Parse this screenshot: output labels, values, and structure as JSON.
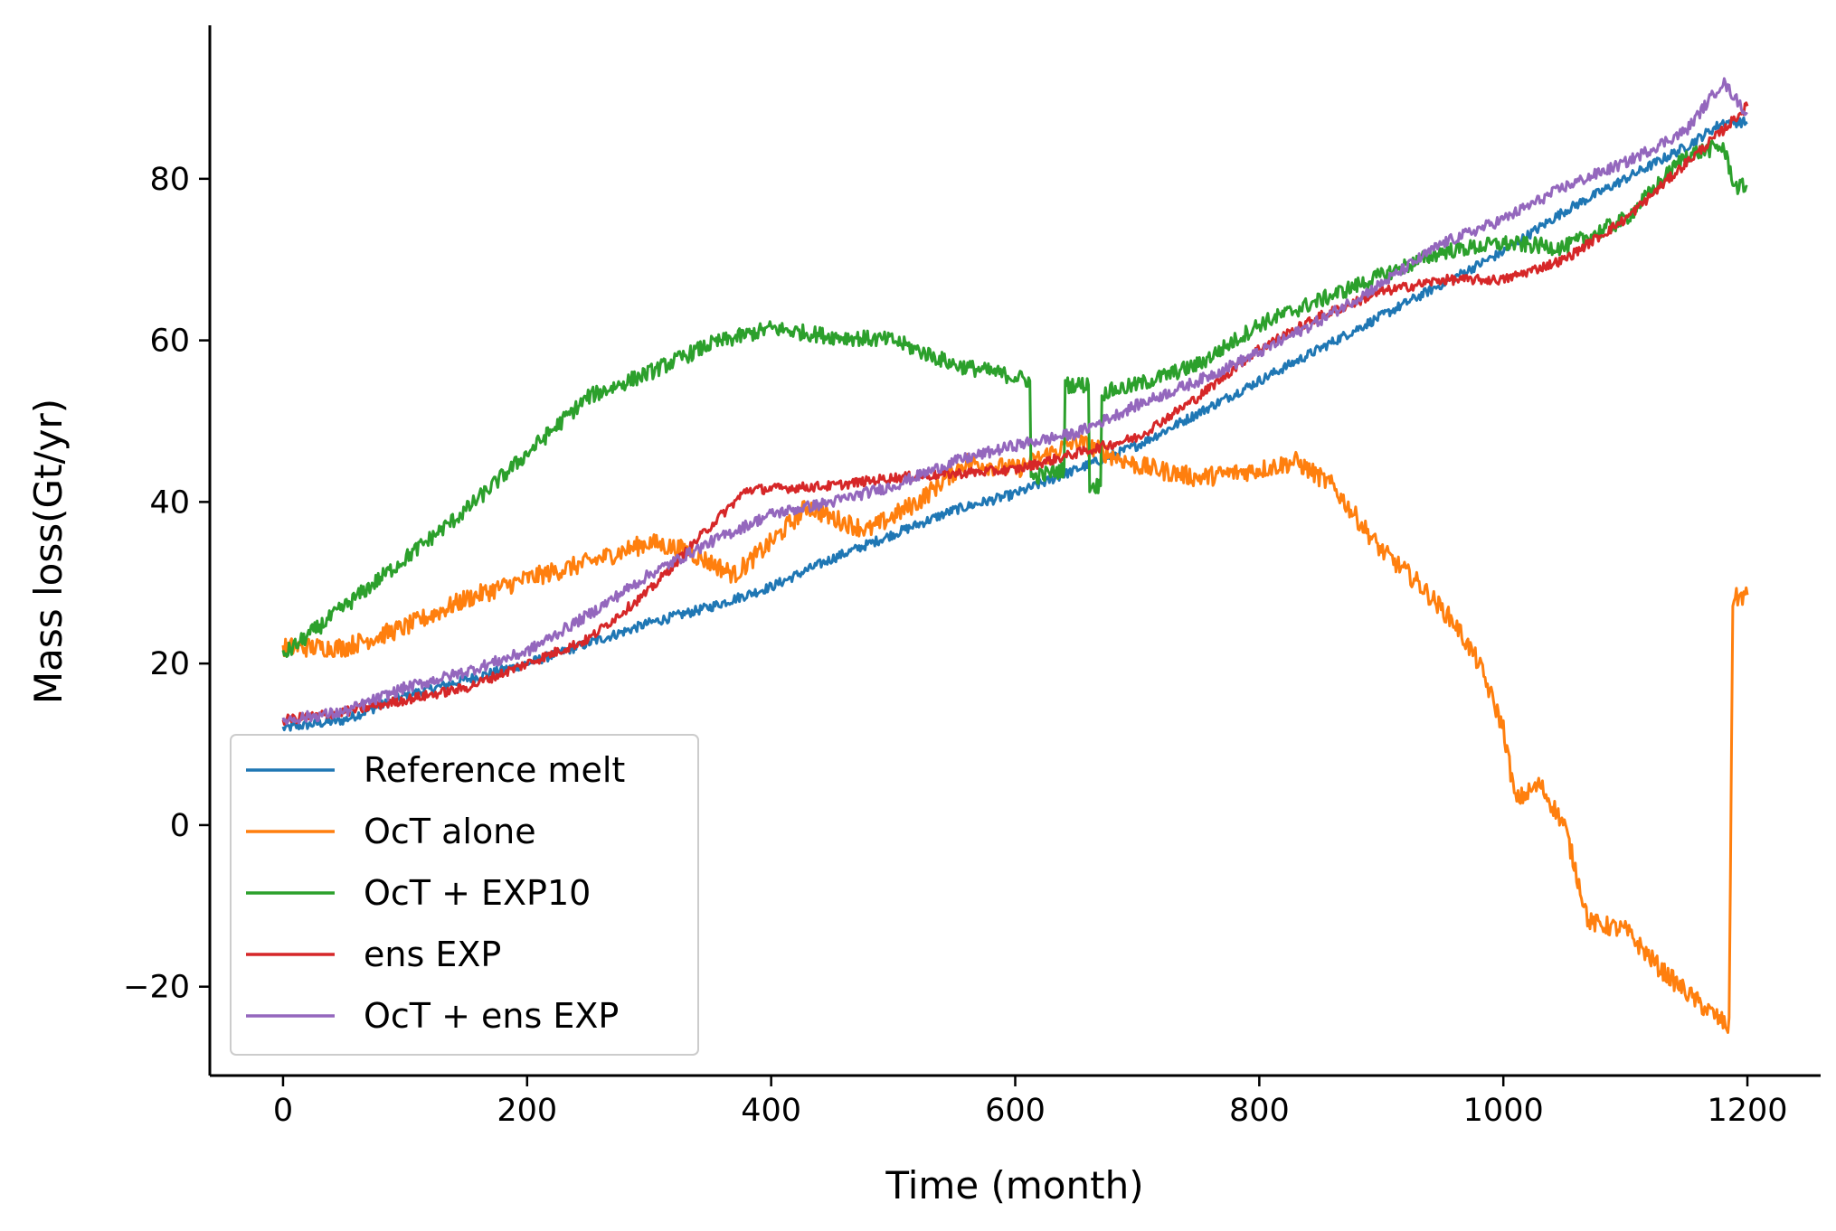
{
  "chart_data": {
    "type": "line",
    "xlabel": "Time (month)",
    "ylabel": "Mass loss(Gt/yr)",
    "xlim": [
      -60,
      1260
    ],
    "ylim": [
      -31,
      99
    ],
    "xticks": [
      {
        "value": 0,
        "label": "0"
      },
      {
        "value": 200,
        "label": "200"
      },
      {
        "value": 400,
        "label": "400"
      },
      {
        "value": 600,
        "label": "600"
      },
      {
        "value": 800,
        "label": "800"
      },
      {
        "value": 1000,
        "label": "1000"
      },
      {
        "value": 1200,
        "label": "1200"
      }
    ],
    "yticks": [
      {
        "value": -20,
        "label": "−20"
      },
      {
        "value": 0,
        "label": "0"
      },
      {
        "value": 20,
        "label": "20"
      },
      {
        "value": 40,
        "label": "40"
      },
      {
        "value": 60,
        "label": "60"
      },
      {
        "value": 80,
        "label": "80"
      }
    ],
    "grid": false,
    "legend_position": "lower-left",
    "series": [
      {
        "name": "Reference melt",
        "color": "#1f77b4",
        "noise": 0.6,
        "points": [
          [
            0,
            12
          ],
          [
            50,
            13
          ],
          [
            100,
            16
          ],
          [
            150,
            18
          ],
          [
            200,
            20
          ],
          [
            250,
            22.5
          ],
          [
            300,
            25
          ],
          [
            350,
            27
          ],
          [
            400,
            29.5
          ],
          [
            450,
            33
          ],
          [
            500,
            36
          ],
          [
            550,
            39
          ],
          [
            600,
            41
          ],
          [
            650,
            44
          ],
          [
            700,
            47
          ],
          [
            750,
            51
          ],
          [
            800,
            55
          ],
          [
            850,
            59
          ],
          [
            900,
            63
          ],
          [
            950,
            67
          ],
          [
            1000,
            71
          ],
          [
            1050,
            76
          ],
          [
            1100,
            80
          ],
          [
            1150,
            84
          ],
          [
            1180,
            87
          ],
          [
            1200,
            87
          ]
        ]
      },
      {
        "name": "OcT alone",
        "color": "#ff7f0e",
        "noise": 1.2,
        "points": [
          [
            0,
            22
          ],
          [
            50,
            22
          ],
          [
            100,
            24.5
          ],
          [
            150,
            28
          ],
          [
            200,
            30.5
          ],
          [
            250,
            32.5
          ],
          [
            300,
            35
          ],
          [
            330,
            34
          ],
          [
            370,
            31
          ],
          [
            400,
            35
          ],
          [
            430,
            39.5
          ],
          [
            450,
            38
          ],
          [
            480,
            36.5
          ],
          [
            520,
            40
          ],
          [
            560,
            45
          ],
          [
            600,
            44
          ],
          [
            650,
            47.5
          ],
          [
            700,
            44.5
          ],
          [
            750,
            43
          ],
          [
            800,
            44
          ],
          [
            830,
            45
          ],
          [
            860,
            42
          ],
          [
            880,
            38
          ],
          [
            900,
            34
          ],
          [
            930,
            30
          ],
          [
            960,
            25
          ],
          [
            980,
            20
          ],
          [
            1000,
            12
          ],
          [
            1010,
            3
          ],
          [
            1030,
            5
          ],
          [
            1050,
            0
          ],
          [
            1070,
            -12
          ],
          [
            1100,
            -13
          ],
          [
            1130,
            -18
          ],
          [
            1160,
            -22
          ],
          [
            1185,
            -25
          ],
          [
            1188,
            28
          ],
          [
            1200,
            28.5
          ]
        ]
      },
      {
        "name": "OcT + EXP10",
        "color": "#2ca02c",
        "noise": 1.0,
        "points": [
          [
            0,
            21
          ],
          [
            50,
            27
          ],
          [
            100,
            33
          ],
          [
            150,
            39
          ],
          [
            200,
            46
          ],
          [
            250,
            53
          ],
          [
            300,
            56
          ],
          [
            350,
            59.5
          ],
          [
            400,
            61.5
          ],
          [
            450,
            60.5
          ],
          [
            500,
            60
          ],
          [
            550,
            57
          ],
          [
            600,
            55.5
          ],
          [
            612,
            55
          ],
          [
            613,
            43
          ],
          [
            640,
            44
          ],
          [
            641,
            54.5
          ],
          [
            660,
            54.5
          ],
          [
            661,
            42
          ],
          [
            670,
            42
          ],
          [
            671,
            53.5
          ],
          [
            700,
            54.5
          ],
          [
            750,
            57
          ],
          [
            800,
            62
          ],
          [
            850,
            65
          ],
          [
            900,
            68
          ],
          [
            950,
            71
          ],
          [
            1000,
            72
          ],
          [
            1050,
            71.5
          ],
          [
            1100,
            75
          ],
          [
            1150,
            83
          ],
          [
            1180,
            84
          ],
          [
            1190,
            79
          ],
          [
            1200,
            79
          ]
        ]
      },
      {
        "name": "ens EXP",
        "color": "#d62728",
        "noise": 0.6,
        "points": [
          [
            0,
            13
          ],
          [
            50,
            14
          ],
          [
            100,
            15.5
          ],
          [
            150,
            17
          ],
          [
            200,
            20
          ],
          [
            250,
            23
          ],
          [
            300,
            29
          ],
          [
            350,
            37
          ],
          [
            380,
            41.5
          ],
          [
            450,
            42
          ],
          [
            500,
            43
          ],
          [
            600,
            44
          ],
          [
            700,
            48
          ],
          [
            750,
            53
          ],
          [
            800,
            59
          ],
          [
            850,
            63
          ],
          [
            900,
            66
          ],
          [
            950,
            67.5
          ],
          [
            1000,
            67.5
          ],
          [
            1050,
            70
          ],
          [
            1100,
            75
          ],
          [
            1150,
            82
          ],
          [
            1180,
            86
          ],
          [
            1200,
            89
          ]
        ]
      },
      {
        "name": "OcT + ens EXP",
        "color": "#9467bd",
        "noise": 0.7,
        "points": [
          [
            0,
            13
          ],
          [
            50,
            14
          ],
          [
            100,
            17
          ],
          [
            150,
            19
          ],
          [
            200,
            21.5
          ],
          [
            250,
            26
          ],
          [
            300,
            31
          ],
          [
            350,
            35
          ],
          [
            400,
            38.5
          ],
          [
            450,
            40
          ],
          [
            500,
            42
          ],
          [
            550,
            45
          ],
          [
            600,
            47
          ],
          [
            650,
            48.5
          ],
          [
            700,
            52
          ],
          [
            750,
            55
          ],
          [
            800,
            58.5
          ],
          [
            850,
            62.5
          ],
          [
            900,
            67
          ],
          [
            950,
            72
          ],
          [
            1000,
            75
          ],
          [
            1050,
            79
          ],
          [
            1100,
            82
          ],
          [
            1150,
            86
          ],
          [
            1170,
            90
          ],
          [
            1180,
            92
          ],
          [
            1200,
            88
          ]
        ]
      }
    ]
  }
}
